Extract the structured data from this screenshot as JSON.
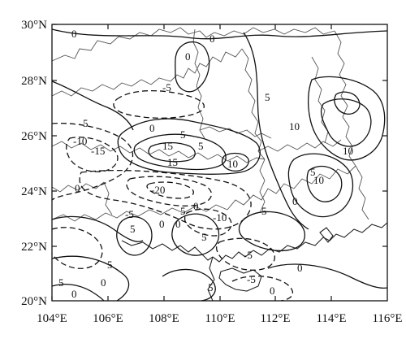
{
  "map": {
    "x_ticks": [
      "104°E",
      "106°E",
      "108°E",
      "110°E",
      "112°E",
      "114°E",
      "116°E"
    ],
    "y_ticks": [
      "30°N",
      "28°N",
      "26°N",
      "24°N",
      "22°N",
      "20°N"
    ],
    "contour_labels": [
      "0",
      "0",
      "0",
      "-5",
      "5",
      "15",
      "5",
      "-10",
      "-15",
      "0",
      "5",
      "15",
      "10",
      "5",
      "10",
      "10",
      "10",
      "5",
      "0",
      "-20",
      "5",
      "0",
      "-10",
      "0",
      "-5",
      "0",
      "5",
      "5",
      "5",
      "-5",
      "0",
      "5",
      "5",
      "0",
      "0",
      "-5",
      "0",
      "5",
      "0"
    ],
    "colors": {
      "line": "#111111",
      "border": "#555555",
      "background": "#ffffff"
    }
  }
}
